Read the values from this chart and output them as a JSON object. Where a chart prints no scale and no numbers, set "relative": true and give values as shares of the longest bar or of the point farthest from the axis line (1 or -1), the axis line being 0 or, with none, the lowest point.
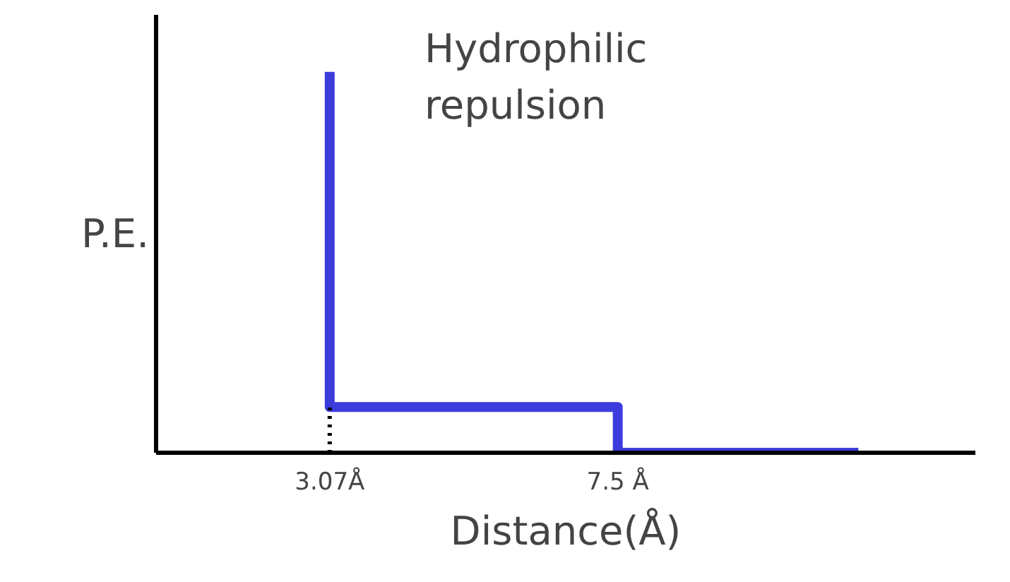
{
  "chart_data": {
    "type": "line",
    "relative": true,
    "ylabel": "P.E.",
    "xlabel": "Distance(Å)",
    "annotations": [
      "Hydrophilic repulsion"
    ],
    "xlim": [
      0.4,
      13
    ],
    "xticks": [
      {
        "value": 3.07,
        "label": "3.07Å"
      },
      {
        "value": 7.5,
        "label": "7.5 Å"
      }
    ],
    "grid": false,
    "series": [
      {
        "color": "#3c3cdc",
        "x": [
          3.07,
          3.07,
          7.5,
          7.5,
          11.2
        ],
        "values": [
          1,
          0.12,
          0.12,
          0,
          0
        ]
      },
      {
        "color": "#000000",
        "line_style": "dotted",
        "x": [
          3.07,
          3.07
        ],
        "values": [
          0,
          0.12
        ]
      }
    ]
  }
}
